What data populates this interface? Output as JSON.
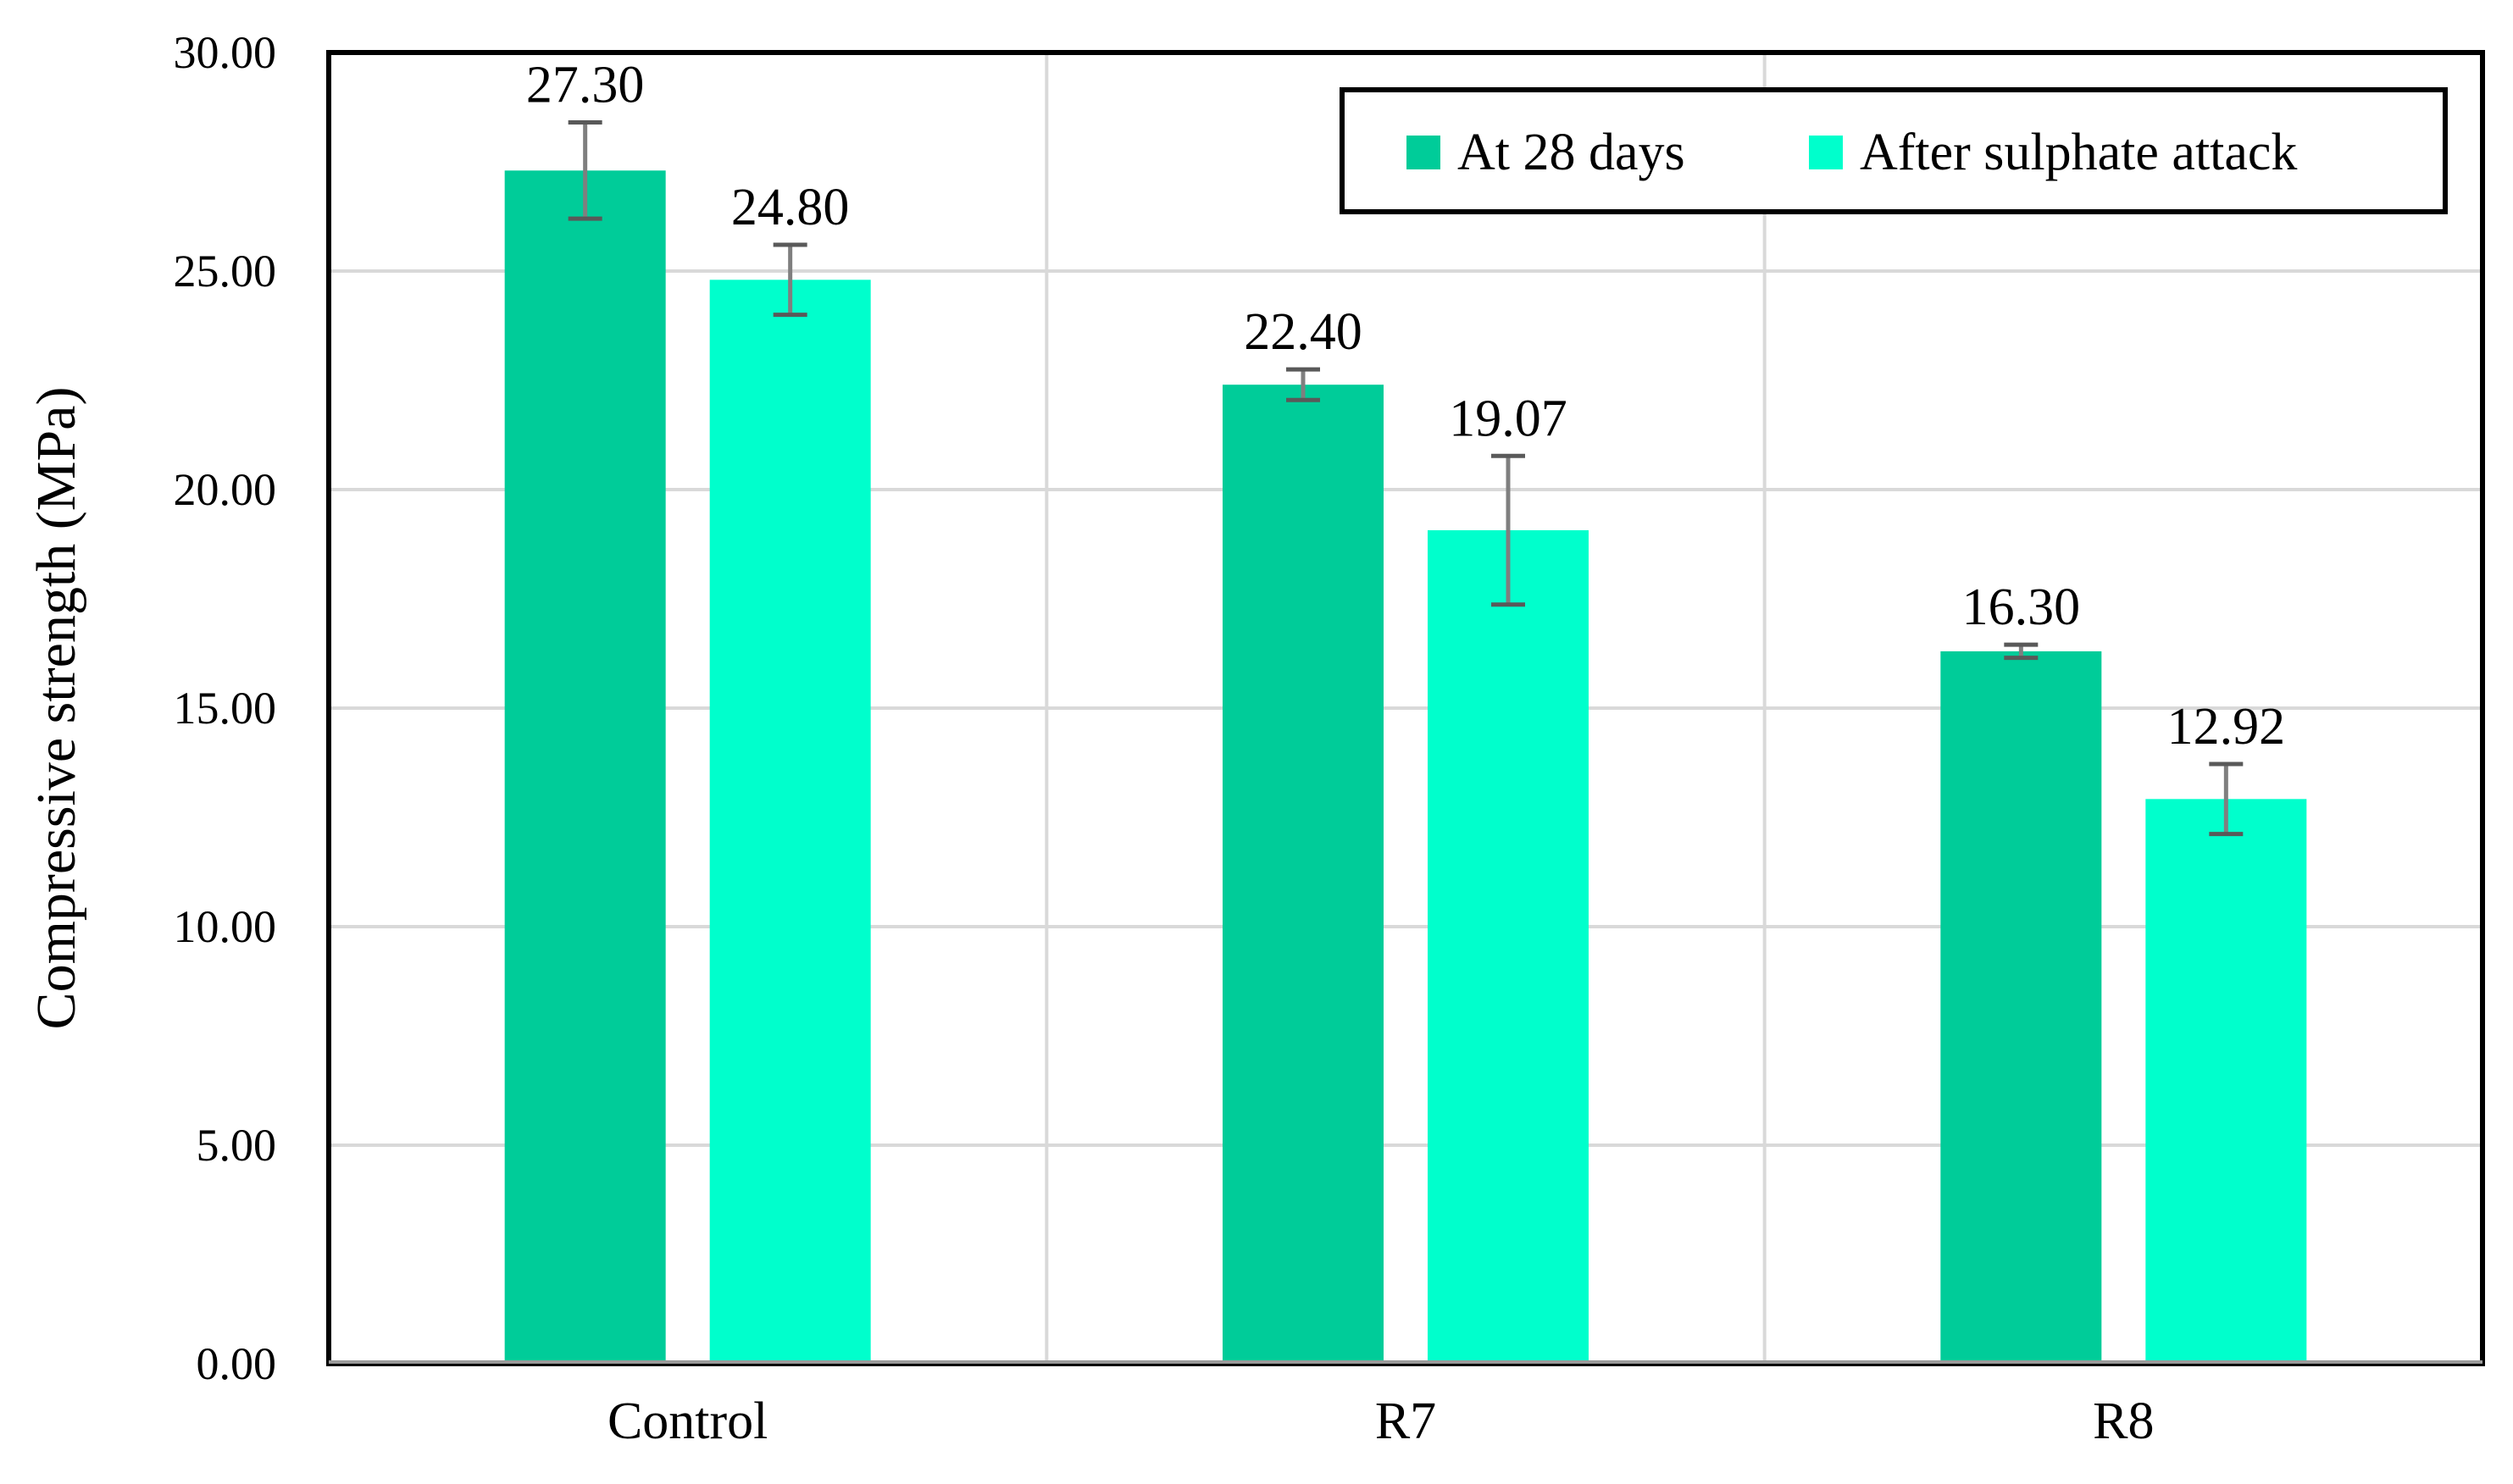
{
  "chart_data": {
    "type": "bar",
    "title": "",
    "xlabel": "",
    "ylabel": "Compressive strength (MPa)",
    "ylim": [
      0,
      30
    ],
    "yticks": [
      "0.00",
      "5.00",
      "10.00",
      "15.00",
      "20.00",
      "25.00",
      "30.00"
    ],
    "grid": true,
    "legend_position": "top-right",
    "categories": [
      "Control",
      "R7",
      "R8"
    ],
    "series": [
      {
        "name": "At 28 days",
        "color": "#00CC99",
        "values": [
          27.3,
          22.4,
          16.3
        ],
        "labels": [
          "27.30",
          "22.40",
          "16.30"
        ],
        "errors": [
          1.1,
          0.35,
          0.15
        ]
      },
      {
        "name": "After sulphate attack",
        "color": "#00FFCC",
        "values": [
          24.8,
          19.07,
          12.92
        ],
        "labels": [
          "24.80",
          "19.07",
          "12.92"
        ],
        "errors": [
          0.8,
          1.7,
          0.8
        ]
      }
    ]
  }
}
